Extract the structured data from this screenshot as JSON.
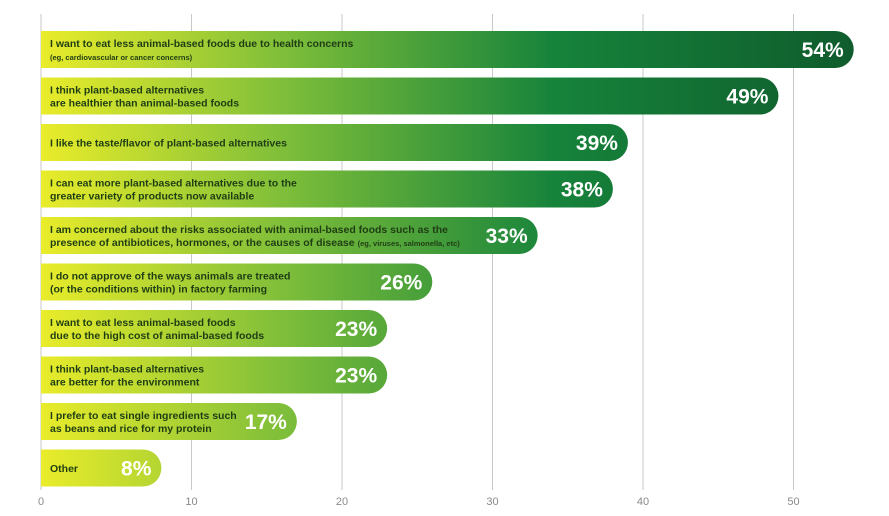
{
  "chart_data": {
    "type": "bar",
    "orientation": "horizontal",
    "xlim": [
      0,
      55
    ],
    "x_ticks": [
      "0",
      "10",
      "20",
      "30",
      "40",
      "50"
    ],
    "grid": "vertical",
    "colors": {
      "start": "#e9ec2a",
      "mid": "#7cbd3a",
      "end": "#16833b",
      "dark": "#0f5a2c",
      "grid": "#c8c8c8"
    },
    "categories": [
      {
        "lines": [
          [
            "I want to eat less animal-based foods due to health concerns",
            ""
          ],
          [
            "(eg, cardiovascular or cancer concerns)",
            "sub"
          ]
        ]
      },
      {
        "lines": [
          [
            "I think plant-based alternatives",
            ""
          ],
          [
            "are healthier than animal-based foods",
            ""
          ]
        ]
      },
      {
        "lines": [
          [
            "I like the taste/flavor of plant-based alternatives",
            ""
          ]
        ]
      },
      {
        "lines": [
          [
            "I can eat more plant-based alternatives due to the",
            ""
          ],
          [
            "greater variety of products now available",
            ""
          ]
        ]
      },
      {
        "lines": [
          [
            "I am concerned about the risks associated with animal-based foods such as the",
            ""
          ],
          [
            "presence of antibiotices, hormones, or the causes of disease",
            "",
            "(eg, viruses, salmonella, etc)"
          ]
        ]
      },
      {
        "lines": [
          [
            "I do not approve of the ways animals are treated",
            ""
          ],
          [
            "(or the conditions within) in factory farming",
            ""
          ]
        ]
      },
      {
        "lines": [
          [
            "I want to eat less animal-based foods",
            ""
          ],
          [
            "due to the high cost of animal-based foods",
            ""
          ]
        ]
      },
      {
        "lines": [
          [
            "I think plant-based alternatives",
            ""
          ],
          [
            "are better for the environment",
            ""
          ]
        ]
      },
      {
        "lines": [
          [
            "I prefer to eat single ingredients such",
            ""
          ],
          [
            "as beans and rice for my protein",
            ""
          ]
        ]
      },
      {
        "lines": [
          [
            "Other",
            ""
          ]
        ]
      }
    ],
    "values": [
      54,
      49,
      39,
      38,
      33,
      26,
      23,
      23,
      17,
      8
    ],
    "value_labels": [
      "54%",
      "49%",
      "39%",
      "38%",
      "33%",
      "26%",
      "23%",
      "23%",
      "17%",
      "8%"
    ]
  }
}
